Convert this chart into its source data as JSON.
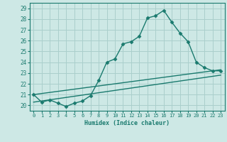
{
  "xlabel": "Humidex (Indice chaleur)",
  "background_color": "#cde8e5",
  "grid_color": "#aacfcc",
  "line_color": "#1a7a6e",
  "xlim": [
    -0.5,
    23.5
  ],
  "ylim": [
    19.5,
    29.5
  ],
  "xticks": [
    0,
    1,
    2,
    3,
    4,
    5,
    6,
    7,
    8,
    9,
    10,
    11,
    12,
    13,
    14,
    15,
    16,
    17,
    18,
    19,
    20,
    21,
    22,
    23
  ],
  "yticks": [
    20,
    21,
    22,
    23,
    24,
    25,
    26,
    27,
    28,
    29
  ],
  "series1": [
    21.0,
    20.3,
    20.5,
    20.2,
    19.9,
    20.2,
    20.4,
    20.9,
    22.3,
    24.0,
    24.3,
    25.7,
    25.9,
    26.4,
    28.1,
    28.3,
    28.8,
    27.7,
    26.7,
    25.9,
    24.0,
    23.5,
    23.2,
    23.2
  ],
  "series2_x": [
    0,
    23
  ],
  "series2_y": [
    21.0,
    23.3
  ],
  "series3_x": [
    0,
    23
  ],
  "series3_y": [
    20.3,
    22.8
  ],
  "marker": "D",
  "marker_size": 2.5,
  "line_width": 1.0
}
